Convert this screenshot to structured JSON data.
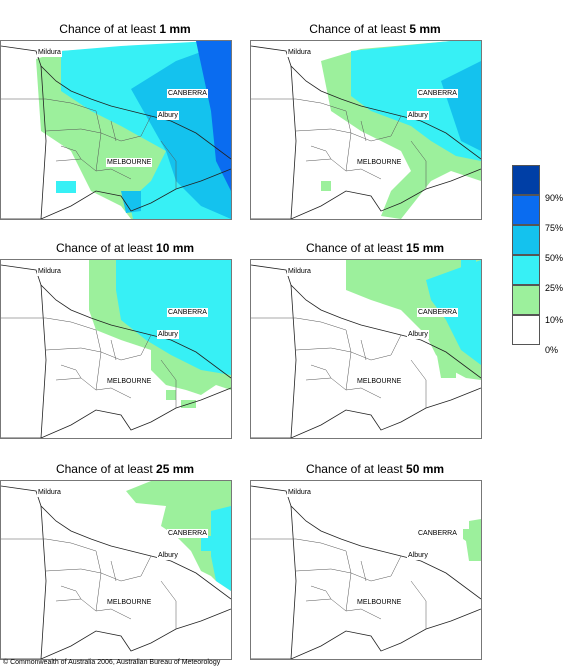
{
  "panels": [
    {
      "prefix": "Chance of at least ",
      "amount": "1 mm"
    },
    {
      "prefix": "Chance of at least ",
      "amount": "5 mm"
    },
    {
      "prefix": "Chance of at least ",
      "amount": "10 mm"
    },
    {
      "prefix": "Chance of at least ",
      "amount": "15 mm"
    },
    {
      "prefix": "Chance of at least ",
      "amount": "25 mm"
    },
    {
      "prefix": "Chance of at least ",
      "amount": "50 mm"
    }
  ],
  "places": {
    "mildura": "Mildura",
    "canberra": "CANBERRA",
    "albury": "Albury",
    "melbourne": "MELBOURNE"
  },
  "legend": [
    {
      "label": "90%",
      "color": "#003fa6"
    },
    {
      "label": "75%",
      "color": "#0a6cf0"
    },
    {
      "label": "50%",
      "color": "#14c2ee"
    },
    {
      "label": "25%",
      "color": "#37f0f5"
    },
    {
      "label": "10%",
      "color": "#9cf09c"
    },
    {
      "label": "0%",
      "color": "#ffffff"
    }
  ],
  "copyright": "© Commonwealth of Australia 2006, Australian Bureau of Meteorology"
}
